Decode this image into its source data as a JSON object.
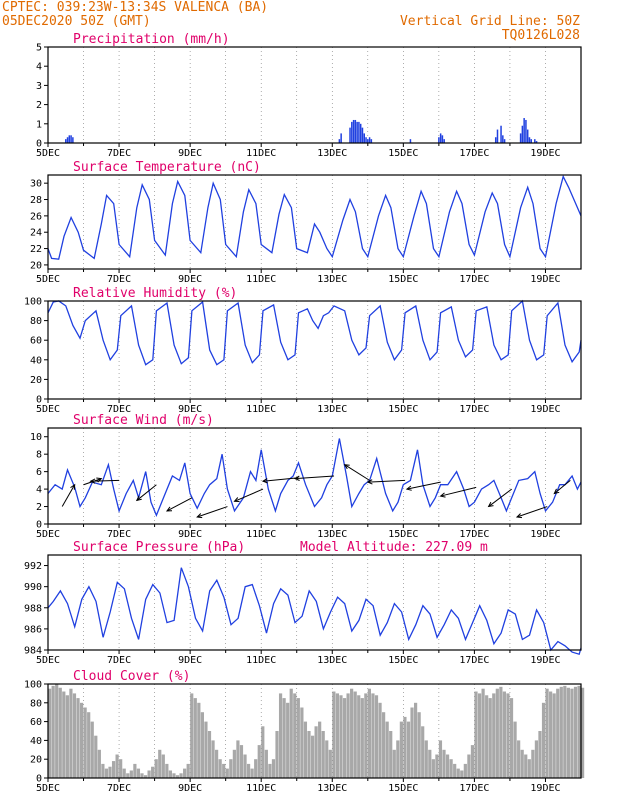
{
  "header": {
    "line1": "CPTEC:  039:23W-13:34S  VALENCA (BA)",
    "line2": "05DEC2020 50Z (GMT)",
    "grid_note": "Vertical Grid Line: 50Z",
    "code": "TQ0126L028"
  },
  "colors": {
    "accent": "#e06a00",
    "title": "#e0006a",
    "series": "#2040e0",
    "cloud": "#a8a8a8"
  },
  "chart_data": [
    {
      "id": "precip",
      "type": "bar",
      "title": "Precipitation (mm/h)",
      "ylim": [
        0,
        5
      ],
      "yticks": [
        0,
        1,
        2,
        3,
        4,
        5
      ],
      "xlim": [
        0,
        15
      ],
      "xticks": [
        "5DEC",
        "7DEC",
        "9DEC",
        "11DEC",
        "13DEC",
        "15DEC",
        "17DEC",
        "19DEC"
      ],
      "x": [
        0.5,
        0.55,
        0.6,
        0.65,
        0.7,
        8.2,
        8.25,
        8.5,
        8.55,
        8.6,
        8.65,
        8.7,
        8.75,
        8.8,
        8.85,
        8.9,
        8.95,
        9.0,
        9.05,
        9.1,
        10.2,
        11.0,
        11.05,
        11.1,
        11.15,
        12.6,
        12.65,
        12.75,
        12.8,
        12.85,
        13.3,
        13.35,
        13.4,
        13.45,
        13.5,
        13.55,
        13.6,
        13.7,
        13.75
      ],
      "values": [
        0.2,
        0.3,
        0.4,
        0.4,
        0.3,
        0.2,
        0.5,
        0.8,
        1.1,
        1.2,
        1.2,
        1.1,
        1.1,
        1.0,
        0.8,
        0.5,
        0.3,
        0.2,
        0.3,
        0.2,
        0.2,
        0.3,
        0.5,
        0.4,
        0.2,
        0.3,
        0.7,
        0.9,
        0.4,
        0.2,
        0.5,
        0.9,
        1.3,
        1.2,
        0.7,
        0.3,
        0.2,
        0.2,
        0.1
      ]
    },
    {
      "id": "temp",
      "type": "line",
      "title": "Surface Temperature (nC)",
      "ylim": [
        19.5,
        31
      ],
      "yticks": [
        20,
        22,
        24,
        26,
        28,
        30
      ],
      "xlim": [
        0,
        15
      ],
      "xticks": [
        "5DEC",
        "7DEC",
        "9DEC",
        "11DEC",
        "13DEC",
        "15DEC",
        "17DEC",
        "19DEC"
      ],
      "x": [
        0,
        0.1,
        0.3,
        0.45,
        0.65,
        0.85,
        1.0,
        1.3,
        1.5,
        1.65,
        1.85,
        2.0,
        2.3,
        2.5,
        2.65,
        2.85,
        3.0,
        3.3,
        3.5,
        3.65,
        3.85,
        4.0,
        4.3,
        4.5,
        4.65,
        4.85,
        5.0,
        5.3,
        5.5,
        5.65,
        5.85,
        6.0,
        6.3,
        6.5,
        6.65,
        6.85,
        7.0,
        7.3,
        7.5,
        7.65,
        7.85,
        8.0,
        8.3,
        8.5,
        8.65,
        8.85,
        9.0,
        9.3,
        9.5,
        9.65,
        9.85,
        10.0,
        10.3,
        10.5,
        10.65,
        10.85,
        11.0,
        11.3,
        11.5,
        11.65,
        11.85,
        12.0,
        12.3,
        12.5,
        12.65,
        12.85,
        13.0,
        13.3,
        13.5,
        13.65,
        13.85,
        14.0,
        14.3,
        14.5,
        14.65,
        14.85,
        15.0
      ],
      "values": [
        22.0,
        20.8,
        20.7,
        23.5,
        25.8,
        24.0,
        21.8,
        20.8,
        25.0,
        28.5,
        27.5,
        22.5,
        21.0,
        27.0,
        29.8,
        28.0,
        23.0,
        21.2,
        27.5,
        30.2,
        28.5,
        23.0,
        21.5,
        27.0,
        30.0,
        28.0,
        22.5,
        21.0,
        26.5,
        29.2,
        27.5,
        22.5,
        21.5,
        26.2,
        28.6,
        27.0,
        22.0,
        21.5,
        25.0,
        24.0,
        22.0,
        21.0,
        25.5,
        28.0,
        26.5,
        22.0,
        21.0,
        26.0,
        28.5,
        27.0,
        22.0,
        21.0,
        26.0,
        29.0,
        27.5,
        22.0,
        21.0,
        26.5,
        29.0,
        27.5,
        22.5,
        21.2,
        26.5,
        28.8,
        27.5,
        22.5,
        21.0,
        27.0,
        29.5,
        27.5,
        22.0,
        21.0,
        27.5,
        30.8,
        29.5,
        27.5,
        26.0
      ]
    },
    {
      "id": "rh",
      "type": "line",
      "title": "Relative Humidity (%)",
      "ylim": [
        0,
        100
      ],
      "yticks": [
        0,
        20,
        40,
        60,
        80,
        100
      ],
      "xlim": [
        0,
        15
      ],
      "xticks": [
        "5DEC",
        "7DEC",
        "9DEC",
        "11DEC",
        "13DEC",
        "15DEC",
        "17DEC",
        "19DEC"
      ],
      "x": [
        0,
        0.15,
        0.3,
        0.5,
        0.7,
        0.9,
        1.05,
        1.35,
        1.55,
        1.75,
        1.95,
        2.05,
        2.35,
        2.55,
        2.75,
        2.95,
        3.05,
        3.35,
        3.55,
        3.75,
        3.95,
        4.05,
        4.35,
        4.55,
        4.75,
        4.95,
        5.05,
        5.35,
        5.55,
        5.75,
        5.95,
        6.05,
        6.35,
        6.55,
        6.75,
        6.95,
        7.05,
        7.3,
        7.45,
        7.6,
        7.75,
        7.9,
        8.05,
        8.35,
        8.55,
        8.75,
        8.95,
        9.05,
        9.35,
        9.55,
        9.75,
        9.95,
        10.05,
        10.35,
        10.55,
        10.75,
        10.95,
        11.05,
        11.35,
        11.55,
        11.75,
        11.95,
        12.05,
        12.35,
        12.55,
        12.75,
        12.95,
        13.05,
        13.35,
        13.55,
        13.75,
        13.95,
        14.05,
        14.35,
        14.55,
        14.75,
        14.95,
        15.0
      ],
      "values": [
        88,
        99,
        100,
        95,
        75,
        62,
        80,
        90,
        60,
        40,
        50,
        85,
        95,
        55,
        35,
        40,
        90,
        98,
        55,
        36,
        42,
        90,
        99,
        50,
        35,
        40,
        90,
        98,
        55,
        37,
        45,
        90,
        96,
        58,
        40,
        45,
        88,
        92,
        80,
        72,
        85,
        88,
        95,
        90,
        60,
        45,
        52,
        85,
        95,
        58,
        40,
        50,
        88,
        95,
        60,
        40,
        48,
        88,
        94,
        60,
        43,
        50,
        90,
        94,
        55,
        40,
        45,
        90,
        100,
        60,
        40,
        45,
        85,
        98,
        55,
        38,
        48,
        60
      ]
    },
    {
      "id": "wind",
      "type": "line",
      "title": "Surface Wind (m/s)",
      "ylim": [
        0,
        11
      ],
      "yticks": [
        0,
        2,
        4,
        6,
        8,
        10
      ],
      "xlim": [
        0,
        15
      ],
      "xticks": [
        "5DEC",
        "7DEC",
        "9DEC",
        "11DEC",
        "13DEC",
        "15DEC",
        "17DEC",
        "19DEC"
      ],
      "x": [
        0,
        0.2,
        0.4,
        0.55,
        0.75,
        0.9,
        1.05,
        1.25,
        1.5,
        1.7,
        1.85,
        2.0,
        2.2,
        2.4,
        2.55,
        2.75,
        2.9,
        3.05,
        3.25,
        3.5,
        3.7,
        3.85,
        4.0,
        4.2,
        4.4,
        4.55,
        4.75,
        4.9,
        5.05,
        5.25,
        5.5,
        5.7,
        5.85,
        6.0,
        6.2,
        6.4,
        6.55,
        6.75,
        6.9,
        7.05,
        7.25,
        7.5,
        7.7,
        7.85,
        8.0,
        8.2,
        8.4,
        8.55,
        8.75,
        8.9,
        9.05,
        9.25,
        9.5,
        9.7,
        9.85,
        10.0,
        10.2,
        10.4,
        10.55,
        10.75,
        10.9,
        11.05,
        11.25,
        11.5,
        11.7,
        11.85,
        12.0,
        12.2,
        12.4,
        12.55,
        12.75,
        12.9,
        13.05,
        13.25,
        13.5,
        13.7,
        13.85,
        14.0,
        14.2,
        14.4,
        14.55,
        14.75,
        14.9,
        15.0
      ],
      "values": [
        3.5,
        4.5,
        4.0,
        6.2,
        4.2,
        2.0,
        3.0,
        4.8,
        4.5,
        6.8,
        4.0,
        1.5,
        3.5,
        5.0,
        3.0,
        6.0,
        2.5,
        1.0,
        3.0,
        5.5,
        5.0,
        7.0,
        3.5,
        1.8,
        3.5,
        4.5,
        5.2,
        8.0,
        4.0,
        1.5,
        3.0,
        6.0,
        5.0,
        8.5,
        4.0,
        1.5,
        3.5,
        5.0,
        5.5,
        7.0,
        4.5,
        2.0,
        3.0,
        4.5,
        5.5,
        9.8,
        5.5,
        2.0,
        3.5,
        4.5,
        5.0,
        7.5,
        3.5,
        1.5,
        2.5,
        4.5,
        5.0,
        8.5,
        4.5,
        2.0,
        3.0,
        4.5,
        4.5,
        6.0,
        4.0,
        2.0,
        2.5,
        4.0,
        4.5,
        5.0,
        3.0,
        1.5,
        3.0,
        5.0,
        5.2,
        6.0,
        3.5,
        1.5,
        2.5,
        4.5,
        4.5,
        5.5,
        4.0,
        4.8
      ],
      "vectors": [
        {
          "x": 0.4,
          "y": 2.0,
          "dx": 0.35,
          "dy": 2.5
        },
        {
          "x": 1.0,
          "y": 4.5,
          "dx": 0.5,
          "dy": 0.7
        },
        {
          "x": 2.0,
          "y": 5.0,
          "dx": -0.8,
          "dy": -0.1
        },
        {
          "x": 3.05,
          "y": 4.5,
          "dx": -0.55,
          "dy": -1.8
        },
        {
          "x": 4.05,
          "y": 3.0,
          "dx": -0.7,
          "dy": -1.5
        },
        {
          "x": 5.05,
          "y": 2.0,
          "dx": -0.85,
          "dy": -1.2
        },
        {
          "x": 6.05,
          "y": 4.0,
          "dx": -0.8,
          "dy": -1.4
        },
        {
          "x": 7.05,
          "y": 5.3,
          "dx": -1.0,
          "dy": -0.4
        },
        {
          "x": 8.05,
          "y": 5.5,
          "dx": -1.1,
          "dy": -0.3
        },
        {
          "x": 9.05,
          "y": 5.0,
          "dx": -0.7,
          "dy": 1.8
        },
        {
          "x": 10.05,
          "y": 5.0,
          "dx": -1.05,
          "dy": -0.2
        },
        {
          "x": 11.05,
          "y": 4.8,
          "dx": -0.95,
          "dy": -0.8
        },
        {
          "x": 12.05,
          "y": 4.2,
          "dx": -1.0,
          "dy": -1.0
        },
        {
          "x": 13.05,
          "y": 4.0,
          "dx": -0.65,
          "dy": -2.0
        },
        {
          "x": 14.05,
          "y": 2.0,
          "dx": -0.85,
          "dy": -1.2
        },
        {
          "x": 14.7,
          "y": 5.0,
          "dx": -0.45,
          "dy": -1.5
        }
      ]
    },
    {
      "id": "pres",
      "type": "line",
      "title": "Surface Pressure (hPa)",
      "annotation": "Model Altitude: 227.09 m",
      "ylim": [
        984,
        993
      ],
      "yticks": [
        984,
        986,
        988,
        990,
        992
      ],
      "xlim": [
        0,
        15
      ],
      "xticks": [
        "5DEC",
        "7DEC",
        "9DEC",
        "11DEC",
        "13DEC",
        "15DEC",
        "17DEC",
        "19DEC"
      ],
      "x": [
        0,
        0.15,
        0.35,
        0.55,
        0.75,
        0.95,
        1.15,
        1.35,
        1.55,
        1.75,
        1.95,
        2.15,
        2.35,
        2.55,
        2.75,
        2.95,
        3.15,
        3.35,
        3.55,
        3.75,
        3.95,
        4.15,
        4.35,
        4.55,
        4.75,
        4.95,
        5.15,
        5.35,
        5.55,
        5.75,
        5.95,
        6.15,
        6.35,
        6.55,
        6.75,
        6.95,
        7.15,
        7.35,
        7.55,
        7.75,
        7.95,
        8.15,
        8.35,
        8.55,
        8.75,
        8.95,
        9.15,
        9.35,
        9.55,
        9.75,
        9.95,
        10.15,
        10.35,
        10.55,
        10.75,
        10.95,
        11.15,
        11.35,
        11.55,
        11.75,
        11.95,
        12.15,
        12.35,
        12.55,
        12.75,
        12.95,
        13.15,
        13.35,
        13.55,
        13.75,
        13.95,
        14.15,
        14.35,
        14.55,
        14.75,
        14.95,
        15.0
      ],
      "values": [
        988.0,
        988.6,
        989.6,
        988.4,
        986.2,
        988.8,
        990.0,
        988.6,
        985.2,
        987.6,
        990.4,
        989.8,
        987.0,
        985.0,
        988.8,
        990.2,
        989.4,
        986.6,
        986.8,
        991.8,
        990.0,
        987.0,
        985.8,
        989.6,
        990.6,
        989.0,
        986.4,
        987.0,
        990.0,
        990.2,
        988.2,
        985.6,
        988.4,
        989.8,
        989.2,
        986.6,
        987.2,
        989.6,
        988.6,
        986.0,
        987.6,
        989.0,
        988.4,
        985.8,
        986.8,
        988.8,
        988.2,
        985.4,
        986.6,
        988.4,
        987.6,
        985.0,
        986.4,
        988.2,
        987.4,
        985.2,
        986.4,
        987.8,
        987.0,
        985.0,
        986.6,
        988.2,
        986.8,
        984.6,
        985.6,
        987.8,
        987.4,
        985.0,
        985.4,
        987.8,
        986.6,
        984.0,
        984.8,
        984.4,
        983.8,
        983.6,
        984.2
      ]
    },
    {
      "id": "cloud",
      "type": "area",
      "title": "Cloud Cover (%)",
      "ylim": [
        0,
        100
      ],
      "yticks": [
        0,
        20,
        40,
        60,
        80,
        100
      ],
      "xlim": [
        0,
        15
      ],
      "xticks": [
        "5DEC",
        "7DEC",
        "9DEC",
        "11DEC",
        "13DEC",
        "15DEC",
        "17DEC",
        "19DEC"
      ],
      "x": [
        0,
        0.1,
        0.2,
        0.3,
        0.4,
        0.5,
        0.6,
        0.7,
        0.8,
        0.9,
        1.0,
        1.1,
        1.2,
        1.3,
        1.4,
        1.5,
        1.6,
        1.7,
        1.8,
        1.9,
        2.0,
        2.1,
        2.2,
        2.3,
        2.4,
        2.5,
        2.6,
        2.7,
        2.8,
        2.9,
        3.0,
        3.1,
        3.2,
        3.3,
        3.4,
        3.5,
        3.6,
        3.7,
        3.8,
        3.9,
        4.0,
        4.1,
        4.2,
        4.3,
        4.4,
        4.5,
        4.6,
        4.7,
        4.8,
        4.9,
        5.0,
        5.1,
        5.2,
        5.3,
        5.4,
        5.5,
        5.6,
        5.7,
        5.8,
        5.9,
        6.0,
        6.1,
        6.2,
        6.3,
        6.4,
        6.5,
        6.6,
        6.7,
        6.8,
        6.9,
        7.0,
        7.1,
        7.2,
        7.3,
        7.4,
        7.5,
        7.6,
        7.7,
        7.8,
        7.9,
        8.0,
        8.1,
        8.2,
        8.3,
        8.4,
        8.5,
        8.6,
        8.7,
        8.8,
        8.9,
        9.0,
        9.1,
        9.2,
        9.3,
        9.4,
        9.5,
        9.6,
        9.7,
        9.8,
        9.9,
        10.0,
        10.1,
        10.2,
        10.3,
        10.4,
        10.5,
        10.6,
        10.7,
        10.8,
        10.9,
        11.0,
        11.1,
        11.2,
        11.3,
        11.4,
        11.5,
        11.6,
        11.7,
        11.8,
        11.9,
        12.0,
        12.1,
        12.2,
        12.3,
        12.4,
        12.5,
        12.6,
        12.7,
        12.8,
        12.9,
        13.0,
        13.1,
        13.2,
        13.3,
        13.4,
        13.5,
        13.6,
        13.7,
        13.8,
        13.9,
        14.0,
        14.1,
        14.2,
        14.3,
        14.4,
        14.5,
        14.6,
        14.7,
        14.8,
        14.9,
        15.0
      ],
      "values": [
        95,
        98,
        100,
        96,
        92,
        88,
        95,
        90,
        85,
        80,
        75,
        70,
        60,
        45,
        30,
        15,
        10,
        12,
        18,
        25,
        20,
        10,
        5,
        8,
        15,
        10,
        5,
        3,
        8,
        12,
        20,
        30,
        25,
        15,
        8,
        5,
        3,
        5,
        10,
        15,
        90,
        85,
        80,
        70,
        60,
        50,
        40,
        30,
        20,
        15,
        10,
        20,
        30,
        40,
        35,
        25,
        15,
        10,
        20,
        35,
        55,
        30,
        15,
        20,
        50,
        90,
        85,
        80,
        95,
        90,
        85,
        75,
        60,
        50,
        45,
        55,
        60,
        50,
        40,
        30,
        92,
        90,
        88,
        85,
        90,
        95,
        92,
        88,
        85,
        90,
        95,
        90,
        88,
        80,
        70,
        60,
        50,
        30,
        40,
        60,
        65,
        60,
        75,
        80,
        70,
        55,
        40,
        30,
        20,
        25,
        40,
        30,
        25,
        20,
        15,
        10,
        8,
        15,
        25,
        35,
        92,
        90,
        95,
        88,
        85,
        90,
        95,
        97,
        92,
        90,
        85,
        60,
        40,
        30,
        25,
        20,
        30,
        40,
        50,
        80,
        95,
        92,
        90,
        95,
        97,
        98,
        96,
        95,
        97,
        98,
        96
      ]
    }
  ]
}
